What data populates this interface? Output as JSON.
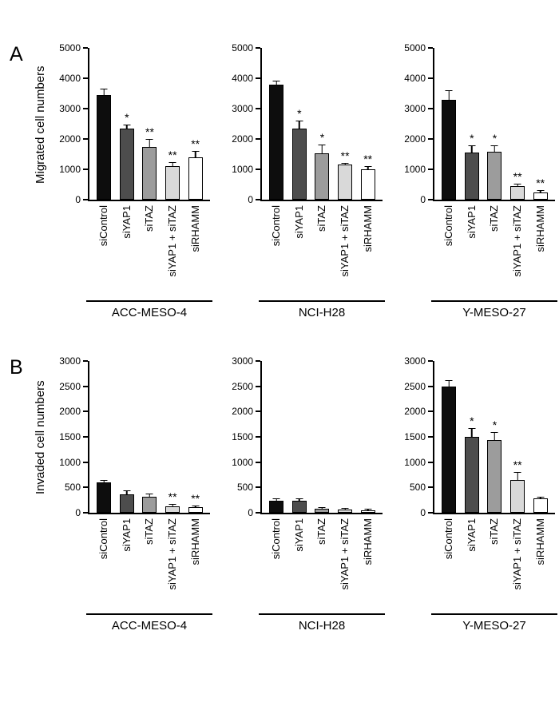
{
  "figure": {
    "bar_colors": [
      "#0d0d0d",
      "#4d4d4d",
      "#9c9c9c",
      "#d9d9d9",
      "#ffffff"
    ],
    "categories": [
      "siControl",
      "siYAP1",
      "siTAZ",
      "siYAP1 + siTAZ",
      "siRHAMM"
    ]
  },
  "panels": [
    {
      "letter": "A",
      "ylabel": "Migrated cell numbers"
    },
    {
      "letter": "B",
      "ylabel": "Invaded cell numbers"
    }
  ],
  "chart_data": [
    {
      "type": "bar",
      "panel": "A",
      "title": "ACC-MESO-4",
      "ylabel": "Migrated cell numbers",
      "ylim": [
        0,
        5000
      ],
      "ytick_step": 1000,
      "categories": [
        "siControl",
        "siYAP1",
        "siTAZ",
        "siYAP1 + siTAZ",
        "siRHAMM"
      ],
      "values": [
        3450,
        2350,
        1750,
        1100,
        1400
      ],
      "errors": [
        200,
        120,
        250,
        150,
        200
      ],
      "significance": [
        "",
        "*",
        "**",
        "**",
        "**"
      ]
    },
    {
      "type": "bar",
      "panel": "A",
      "title": "NCI-H28",
      "ylabel": "Migrated cell numbers",
      "ylim": [
        0,
        5000
      ],
      "ytick_step": 1000,
      "categories": [
        "siControl",
        "siYAP1",
        "siTAZ",
        "siYAP1 + siTAZ",
        "siRHAMM"
      ],
      "values": [
        3780,
        2350,
        1520,
        1150,
        1000
      ],
      "errors": [
        150,
        250,
        300,
        60,
        100
      ],
      "significance": [
        "",
        "*",
        "*",
        "**",
        "**"
      ]
    },
    {
      "type": "bar",
      "panel": "A",
      "title": "Y-MESO-27",
      "ylabel": "Migrated cell numbers",
      "ylim": [
        0,
        5000
      ],
      "ytick_step": 1000,
      "categories": [
        "siControl",
        "siYAP1",
        "siTAZ",
        "siYAP1 + siTAZ",
        "siRHAMM"
      ],
      "values": [
        3300,
        1550,
        1580,
        450,
        250
      ],
      "errors": [
        300,
        250,
        200,
        80,
        60
      ],
      "significance": [
        "",
        "*",
        "*",
        "**",
        "**"
      ]
    },
    {
      "type": "bar",
      "panel": "B",
      "title": "ACC-MESO-4",
      "ylabel": "Invaded cell numbers",
      "ylim": [
        0,
        3000
      ],
      "ytick_step": 500,
      "categories": [
        "siControl",
        "siYAP1",
        "siTAZ",
        "siYAP1 + siTAZ",
        "siRHAMM"
      ],
      "values": [
        600,
        370,
        320,
        130,
        110
      ],
      "errors": [
        40,
        80,
        60,
        40,
        30
      ],
      "significance": [
        "",
        "",
        "",
        "**",
        "**"
      ]
    },
    {
      "type": "bar",
      "panel": "B",
      "title": "NCI-H28",
      "ylabel": "Invaded cell numbers",
      "ylim": [
        0,
        3000
      ],
      "ytick_step": 500,
      "categories": [
        "siControl",
        "siYAP1",
        "siTAZ",
        "siYAP1 + siTAZ",
        "siRHAMM"
      ],
      "values": [
        230,
        230,
        80,
        60,
        50
      ],
      "errors": [
        60,
        60,
        20,
        15,
        10
      ],
      "significance": [
        "",
        "",
        "",
        "",
        ""
      ]
    },
    {
      "type": "bar",
      "panel": "B",
      "title": "Y-MESO-27",
      "ylabel": "Invaded cell numbers",
      "ylim": [
        0,
        3000
      ],
      "ytick_step": 500,
      "categories": [
        "siControl",
        "siYAP1",
        "siTAZ",
        "siYAP1 + siTAZ",
        "siRHAMM"
      ],
      "values": [
        2500,
        1500,
        1440,
        650,
        280
      ],
      "errors": [
        120,
        180,
        150,
        150,
        40
      ],
      "significance": [
        "",
        "*",
        "*",
        "**",
        ""
      ]
    }
  ]
}
